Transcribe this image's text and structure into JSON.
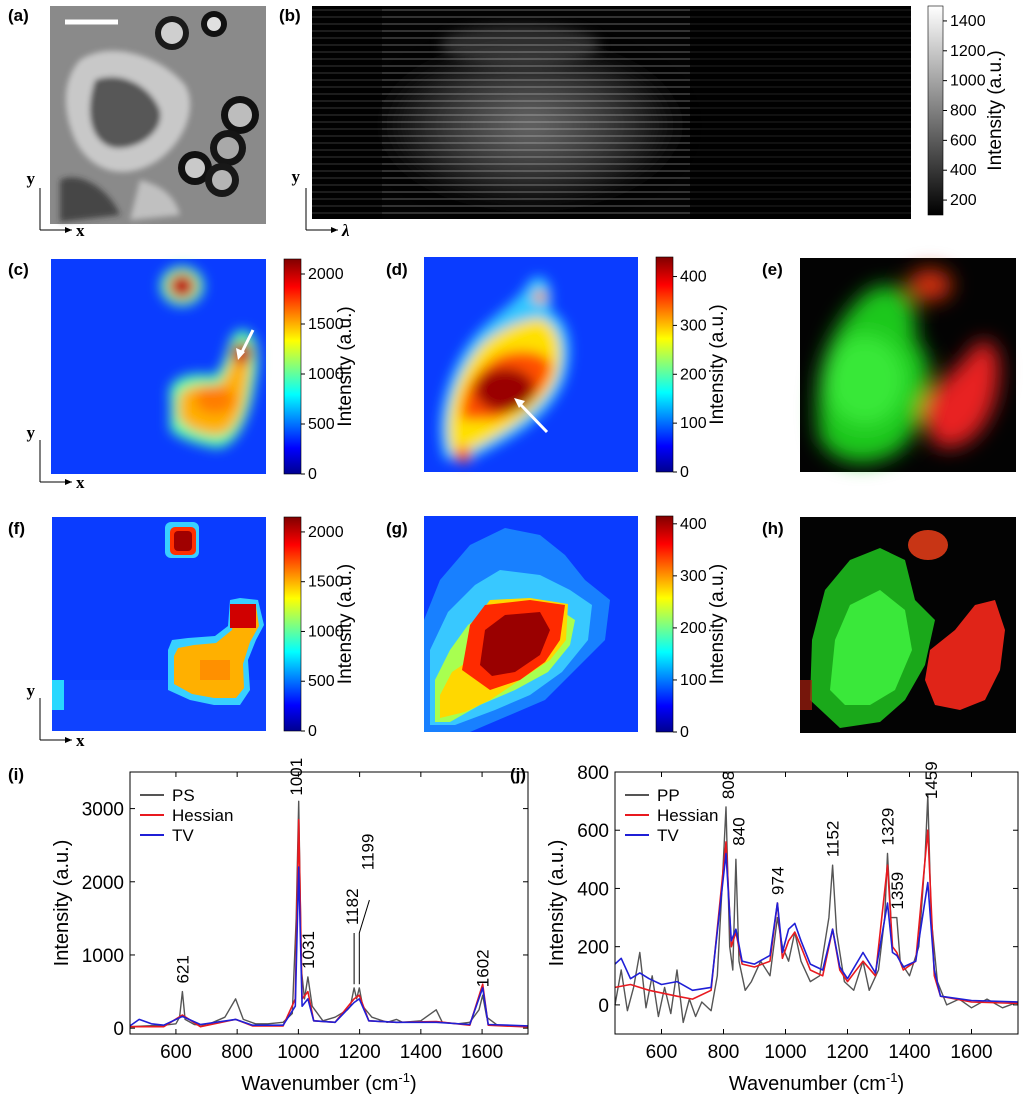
{
  "panels": {
    "a": "(a)",
    "b": "(b)",
    "c": "(c)",
    "d": "(d)",
    "e": "(e)",
    "f": "(f)",
    "g": "(g)",
    "h": "(h)",
    "i": "(i)",
    "j": "(j)"
  },
  "axis_letters": {
    "x": "x",
    "y": "y",
    "lambda": "λ"
  },
  "colorbar_label": "Intensity (a.u.)",
  "colormaps": {
    "gray": [
      "#000000",
      "#ffffff"
    ],
    "jet": [
      "#00008f",
      "#0000ff",
      "#00ffff",
      "#ffff00",
      "#ff0000",
      "#800000"
    ]
  },
  "colorbars": {
    "b": {
      "ticks": [
        200,
        400,
        600,
        800,
        1000,
        1200,
        1400
      ],
      "range": [
        100,
        1500
      ]
    },
    "c": {
      "ticks": [
        0,
        500,
        1000,
        1500,
        2000
      ],
      "range": [
        0,
        2150
      ]
    },
    "d": {
      "ticks": [
        0,
        100,
        200,
        300,
        400
      ],
      "range": [
        0,
        440
      ]
    },
    "f": {
      "ticks": [
        0,
        500,
        1000,
        1500,
        2000
      ],
      "range": [
        0,
        2150
      ]
    },
    "g": {
      "ticks": [
        0,
        100,
        200,
        300,
        400
      ],
      "range": [
        0,
        415
      ]
    }
  },
  "chart_data": [
    {
      "panel": "i",
      "type": "line",
      "xlabel": "Wavenumber (cm",
      "xlabel_sup": "-1",
      "xlabel_end": ")",
      "ylabel": "Intensity (a.u.)",
      "xlim": [
        450,
        1750
      ],
      "ylim": [
        -80,
        3500
      ],
      "xticks": [
        600,
        800,
        1000,
        1200,
        1400,
        1600
      ],
      "yticks": [
        0,
        1000,
        2000,
        3000
      ],
      "legend": "top-left",
      "series_colors": [
        "#555555",
        "#e8191f",
        "#1f1fd6"
      ],
      "series": [
        {
          "name": "PS",
          "points": [
            [
              450,
              20
            ],
            [
              500,
              30
            ],
            [
              560,
              40
            ],
            [
              600,
              60
            ],
            [
              612,
              150
            ],
            [
              621,
              500
            ],
            [
              630,
              120
            ],
            [
              660,
              50
            ],
            [
              700,
              40
            ],
            [
              760,
              150
            ],
            [
              795,
              400
            ],
            [
              820,
              120
            ],
            [
              860,
              60
            ],
            [
              900,
              60
            ],
            [
              950,
              80
            ],
            [
              980,
              200
            ],
            [
              993,
              1500
            ],
            [
              1001,
              3100
            ],
            [
              1010,
              800
            ],
            [
              1020,
              400
            ],
            [
              1031,
              700
            ],
            [
              1045,
              300
            ],
            [
              1080,
              100
            ],
            [
              1120,
              150
            ],
            [
              1160,
              250
            ],
            [
              1170,
              300
            ],
            [
              1182,
              550
            ],
            [
              1190,
              400
            ],
            [
              1199,
              550
            ],
            [
              1210,
              300
            ],
            [
              1240,
              150
            ],
            [
              1290,
              80
            ],
            [
              1320,
              120
            ],
            [
              1340,
              80
            ],
            [
              1400,
              100
            ],
            [
              1450,
              250
            ],
            [
              1470,
              80
            ],
            [
              1520,
              60
            ],
            [
              1560,
              80
            ],
            [
              1590,
              250
            ],
            [
              1602,
              450
            ],
            [
              1615,
              150
            ],
            [
              1650,
              40
            ],
            [
              1700,
              30
            ],
            [
              1750,
              20
            ]
          ]
        },
        {
          "name": "Hessian",
          "points": [
            [
              450,
              20
            ],
            [
              560,
              20
            ],
            [
              621,
              180
            ],
            [
              680,
              20
            ],
            [
              795,
              120
            ],
            [
              850,
              30
            ],
            [
              950,
              30
            ],
            [
              990,
              400
            ],
            [
              1001,
              2850
            ],
            [
              1012,
              400
            ],
            [
              1031,
              500
            ],
            [
              1050,
              100
            ],
            [
              1120,
              80
            ],
            [
              1182,
              400
            ],
            [
              1199,
              450
            ],
            [
              1230,
              100
            ],
            [
              1320,
              80
            ],
            [
              1450,
              90
            ],
            [
              1560,
              40
            ],
            [
              1602,
              600
            ],
            [
              1620,
              40
            ],
            [
              1750,
              15
            ]
          ]
        },
        {
          "name": "TV",
          "points": [
            [
              450,
              30
            ],
            [
              480,
              120
            ],
            [
              520,
              60
            ],
            [
              560,
              40
            ],
            [
              621,
              160
            ],
            [
              680,
              50
            ],
            [
              795,
              120
            ],
            [
              850,
              40
            ],
            [
              950,
              40
            ],
            [
              990,
              300
            ],
            [
              1001,
              2200
            ],
            [
              1012,
              300
            ],
            [
              1031,
              400
            ],
            [
              1050,
              100
            ],
            [
              1120,
              80
            ],
            [
              1182,
              350
            ],
            [
              1199,
              400
            ],
            [
              1230,
              100
            ],
            [
              1320,
              80
            ],
            [
              1450,
              80
            ],
            [
              1560,
              50
            ],
            [
              1602,
              550
            ],
            [
              1620,
              50
            ],
            [
              1750,
              30
            ]
          ]
        }
      ],
      "peak_labels": [
        {
          "text": "621",
          "x": 621,
          "y": 500
        },
        {
          "text": "1001",
          "x": 1001,
          "y": 3100
        },
        {
          "text": "1031",
          "x": 1031,
          "y": 700
        },
        {
          "text": "1182",
          "x": 1182,
          "y": 550
        },
        {
          "text": "1199",
          "x": 1199,
          "y": 550
        },
        {
          "text": "1602",
          "x": 1602,
          "y": 450
        }
      ]
    },
    {
      "panel": "j",
      "type": "line",
      "xlabel": "Wavenumber (cm",
      "xlabel_sup": "-1",
      "xlabel_end": ")",
      "ylabel": "Intensity (a.u.)",
      "xlim": [
        450,
        1750
      ],
      "ylim": [
        -100,
        800
      ],
      "xticks": [
        600,
        800,
        1000,
        1200,
        1400,
        1600
      ],
      "yticks": [
        0,
        200,
        400,
        600,
        800
      ],
      "legend": "top-left",
      "series_colors": [
        "#555555",
        "#e8191f",
        "#1f1fd6"
      ],
      "series": [
        {
          "name": "PP",
          "points": [
            [
              450,
              0
            ],
            [
              470,
              120
            ],
            [
              490,
              -20
            ],
            [
              510,
              60
            ],
            [
              530,
              180
            ],
            [
              550,
              -10
            ],
            [
              570,
              100
            ],
            [
              590,
              -40
            ],
            [
              610,
              60
            ],
            [
              630,
              -30
            ],
            [
              650,
              120
            ],
            [
              670,
              -60
            ],
            [
              690,
              20
            ],
            [
              710,
              -40
            ],
            [
              730,
              10
            ],
            [
              760,
              -20
            ],
            [
              780,
              100
            ],
            [
              795,
              400
            ],
            [
              808,
              680
            ],
            [
              820,
              200
            ],
            [
              830,
              120
            ],
            [
              840,
              500
            ],
            [
              850,
              150
            ],
            [
              870,
              50
            ],
            [
              890,
              80
            ],
            [
              920,
              150
            ],
            [
              950,
              100
            ],
            [
              974,
              300
            ],
            [
              990,
              200
            ],
            [
              1010,
              150
            ],
            [
              1030,
              250
            ],
            [
              1050,
              150
            ],
            [
              1080,
              80
            ],
            [
              1110,
              100
            ],
            [
              1140,
              300
            ],
            [
              1152,
              480
            ],
            [
              1165,
              250
            ],
            [
              1190,
              80
            ],
            [
              1220,
              50
            ],
            [
              1250,
              150
            ],
            [
              1270,
              50
            ],
            [
              1300,
              120
            ],
            [
              1320,
              300
            ],
            [
              1329,
              520
            ],
            [
              1340,
              300
            ],
            [
              1359,
              300
            ],
            [
              1370,
              150
            ],
            [
              1400,
              100
            ],
            [
              1430,
              200
            ],
            [
              1450,
              500
            ],
            [
              1459,
              720
            ],
            [
              1470,
              300
            ],
            [
              1490,
              80
            ],
            [
              1520,
              0
            ],
            [
              1560,
              20
            ],
            [
              1600,
              -10
            ],
            [
              1650,
              20
            ],
            [
              1700,
              -10
            ],
            [
              1750,
              10
            ]
          ]
        },
        {
          "name": "Hessian",
          "points": [
            [
              450,
              60
            ],
            [
              500,
              70
            ],
            [
              560,
              50
            ],
            [
              650,
              30
            ],
            [
              700,
              20
            ],
            [
              760,
              50
            ],
            [
              808,
              560
            ],
            [
              825,
              200
            ],
            [
              840,
              250
            ],
            [
              860,
              140
            ],
            [
              900,
              130
            ],
            [
              950,
              150
            ],
            [
              974,
              350
            ],
            [
              990,
              160
            ],
            [
              1010,
              220
            ],
            [
              1030,
              250
            ],
            [
              1050,
              200
            ],
            [
              1080,
              120
            ],
            [
              1120,
              100
            ],
            [
              1152,
              260
            ],
            [
              1175,
              120
            ],
            [
              1200,
              80
            ],
            [
              1250,
              150
            ],
            [
              1290,
              100
            ],
            [
              1329,
              480
            ],
            [
              1345,
              200
            ],
            [
              1359,
              180
            ],
            [
              1380,
              120
            ],
            [
              1420,
              150
            ],
            [
              1459,
              600
            ],
            [
              1480,
              100
            ],
            [
              1500,
              30
            ],
            [
              1600,
              10
            ],
            [
              1750,
              5
            ]
          ]
        },
        {
          "name": "TV",
          "points": [
            [
              450,
              140
            ],
            [
              470,
              160
            ],
            [
              500,
              90
            ],
            [
              530,
              110
            ],
            [
              560,
              90
            ],
            [
              600,
              70
            ],
            [
              650,
              80
            ],
            [
              700,
              50
            ],
            [
              760,
              60
            ],
            [
              808,
              520
            ],
            [
              825,
              220
            ],
            [
              840,
              260
            ],
            [
              860,
              150
            ],
            [
              900,
              140
            ],
            [
              950,
              170
            ],
            [
              974,
              350
            ],
            [
              990,
              180
            ],
            [
              1010,
              260
            ],
            [
              1030,
              280
            ],
            [
              1050,
              220
            ],
            [
              1080,
              140
            ],
            [
              1120,
              120
            ],
            [
              1152,
              260
            ],
            [
              1175,
              130
            ],
            [
              1200,
              90
            ],
            [
              1250,
              180
            ],
            [
              1290,
              110
            ],
            [
              1329,
              350
            ],
            [
              1345,
              180
            ],
            [
              1359,
              170
            ],
            [
              1380,
              130
            ],
            [
              1420,
              150
            ],
            [
              1459,
              420
            ],
            [
              1480,
              120
            ],
            [
              1500,
              30
            ],
            [
              1600,
              15
            ],
            [
              1750,
              10
            ]
          ]
        }
      ],
      "peak_labels": [
        {
          "text": "808",
          "x": 808,
          "y": 680
        },
        {
          "text": "840",
          "x": 840,
          "y": 500
        },
        {
          "text": "974",
          "x": 974,
          "y": 350
        },
        {
          "text": "1152",
          "x": 1152,
          "y": 480
        },
        {
          "text": "1329",
          "x": 1329,
          "y": 520
        },
        {
          "text": "1359",
          "x": 1359,
          "y": 300
        },
        {
          "text": "1459",
          "x": 1459,
          "y": 720
        }
      ]
    }
  ]
}
